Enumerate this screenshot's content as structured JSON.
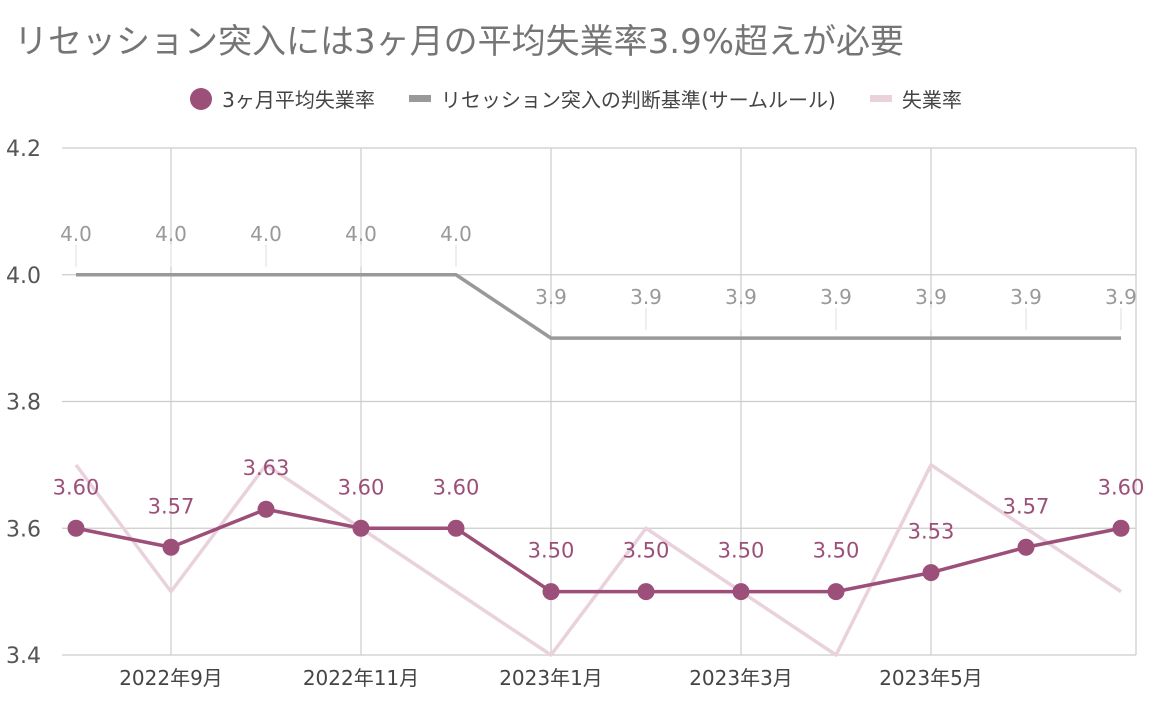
{
  "chart_data": {
    "type": "line",
    "title": "リセッション突入には3ヶ月の平均失業率3.9%超えが必要",
    "xlabel": "",
    "ylabel": "",
    "ylim": [
      3.4,
      4.2
    ],
    "yticks": [
      "4.2",
      "4.0",
      "3.8",
      "3.6",
      "3.4"
    ],
    "grid": true,
    "legend_position": "top",
    "categories": [
      "2022-08",
      "2022-09",
      "2022-10",
      "2022-11",
      "2022-12",
      "2023-01",
      "2023-02",
      "2023-03",
      "2023-04",
      "2023-05",
      "2023-06",
      "2023-07"
    ],
    "xtick_labels": [
      {
        "index": 1,
        "label": "2022年9月"
      },
      {
        "index": 3,
        "label": "2022年11月"
      },
      {
        "index": 5,
        "label": "2023年1月"
      },
      {
        "index": 7,
        "label": "2023年3月"
      },
      {
        "index": 9,
        "label": "2023年5月"
      }
    ],
    "series": [
      {
        "name": "3ヶ月平均失業率",
        "color": "#9c4f78",
        "values": [
          3.6,
          3.57,
          3.63,
          3.6,
          3.6,
          3.5,
          3.5,
          3.5,
          3.5,
          3.53,
          3.57,
          3.6
        ],
        "labels": [
          "3.60",
          "3.57",
          "3.63",
          "3.60",
          "3.60",
          "3.50",
          "3.50",
          "3.50",
          "3.50",
          "3.53",
          "3.57",
          "3.60"
        ]
      },
      {
        "name": "リセッション突入の判断基準(サームルール)",
        "color": "#999999",
        "values": [
          4.0,
          4.0,
          4.0,
          4.0,
          4.0,
          3.9,
          3.9,
          3.9,
          3.9,
          3.9,
          3.9,
          3.9
        ],
        "labels": [
          "4.0",
          "4.0",
          "4.0",
          "4.0",
          "4.0",
          "3.9",
          "3.9",
          "3.9",
          "3.9",
          "3.9",
          "3.9",
          "3.9"
        ]
      },
      {
        "name": "失業率",
        "color": "#e9d2dc",
        "values": [
          3.7,
          3.5,
          3.7,
          3.6,
          3.5,
          3.4,
          3.6,
          3.5,
          3.4,
          3.7,
          3.6,
          3.5
        ]
      }
    ]
  }
}
